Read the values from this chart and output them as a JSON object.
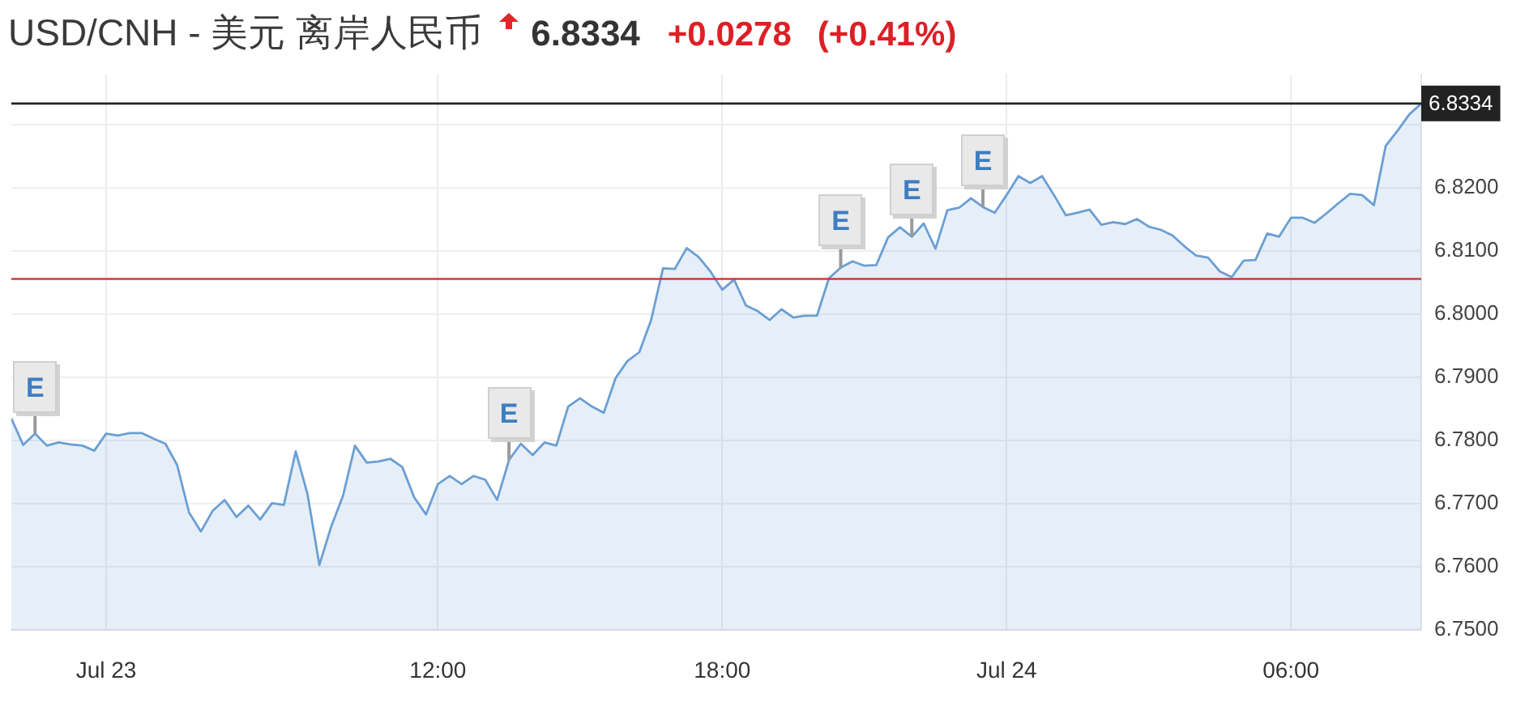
{
  "chart_data": {
    "type": "area",
    "title": "USD/CNH - 美元 离岸人民币",
    "annotations": [
      "6.8334",
      "+0.0278",
      "(+0.41%)",
      {
        "text": "E",
        "x": "--07-23T03:30",
        "y": 6.7811
      },
      {
        "text": "E",
        "x": "--07-23T13:30",
        "y": 6.7769
      },
      {
        "text": "E",
        "x": "--07-23T20:30",
        "y": 6.8074
      },
      {
        "text": "E",
        "x": "--07-23T22:00",
        "y": 6.8123
      },
      {
        "text": "E",
        "x": "--07-23T23:30",
        "y": 6.817
      }
    ],
    "x": [
      "--07-23T03:00",
      "--07-23T03:15",
      "--07-23T03:30",
      "--07-23T03:45",
      "--07-23T04:00",
      "--07-23T04:15",
      "--07-23T04:30",
      "--07-23T04:45",
      "--07-23T05:00",
      "--07-23T05:15",
      "--07-23T05:30",
      "--07-23T05:45",
      "--07-23T06:00",
      "--07-23T06:15",
      "--07-23T06:30",
      "--07-23T06:45",
      "--07-23T07:00",
      "--07-23T07:15",
      "--07-23T07:30",
      "--07-23T07:45",
      "--07-23T08:00",
      "--07-23T08:15",
      "--07-23T08:30",
      "--07-23T08:45",
      "--07-23T09:00",
      "--07-23T09:15",
      "--07-23T09:30",
      "--07-23T09:45",
      "--07-23T10:00",
      "--07-23T10:15",
      "--07-23T10:30",
      "--07-23T10:45",
      "--07-23T11:00",
      "--07-23T11:15",
      "--07-23T11:30",
      "--07-23T11:45",
      "--07-23T12:00",
      "--07-23T12:15",
      "--07-23T12:30",
      "--07-23T12:45",
      "--07-23T13:00",
      "--07-23T13:15",
      "--07-23T13:30",
      "--07-23T13:45",
      "--07-23T14:00",
      "--07-23T14:15",
      "--07-23T14:30",
      "--07-23T14:45",
      "--07-23T15:00",
      "--07-23T15:15",
      "--07-23T15:30",
      "--07-23T15:45",
      "--07-23T16:00",
      "--07-23T16:15",
      "--07-23T16:30",
      "--07-23T16:45",
      "--07-23T17:00",
      "--07-23T17:15",
      "--07-23T17:30",
      "--07-23T17:45",
      "--07-23T18:00",
      "--07-23T18:15",
      "--07-23T18:30",
      "--07-23T18:45",
      "--07-23T19:00",
      "--07-23T19:15",
      "--07-23T19:30",
      "--07-23T19:45",
      "--07-23T20:00",
      "--07-23T20:15",
      "--07-23T20:30",
      "--07-23T20:45",
      "--07-23T21:00",
      "--07-23T21:15",
      "--07-23T21:30",
      "--07-23T21:45",
      "--07-23T22:00",
      "--07-23T22:15",
      "--07-23T22:30",
      "--07-23T22:45",
      "--07-23T23:00",
      "--07-23T23:15",
      "--07-23T23:30",
      "--07-23T23:45",
      "--07-24T00:00",
      "--07-24T00:15",
      "--07-24T00:30",
      "--07-24T00:45",
      "--07-24T01:00",
      "--07-24T01:15",
      "--07-24T01:30",
      "--07-24T01:45",
      "--07-24T02:00",
      "--07-24T02:15",
      "--07-24T02:30",
      "--07-24T02:45",
      "--07-24T03:00",
      "--07-24T03:15",
      "--07-24T03:30",
      "--07-24T03:45",
      "--07-24T04:00",
      "--07-24T04:15",
      "--07-24T04:30",
      "--07-24T04:45",
      "--07-24T05:00",
      "--07-24T05:15",
      "--07-24T05:30",
      "--07-24T05:45",
      "--07-24T06:00",
      "--07-24T06:15",
      "--07-24T06:30",
      "--07-24T06:45",
      "--07-24T07:00",
      "--07-24T07:15",
      "--07-24T07:30",
      "--07-24T07:45",
      "--07-24T08:00",
      "--07-24T08:15",
      "--07-24T08:30",
      "--07-24T08:45"
    ],
    "values": [
      6.7835,
      6.7793,
      6.7811,
      6.7792,
      6.7797,
      6.7794,
      6.7792,
      6.7784,
      6.7811,
      6.7808,
      6.7812,
      6.7812,
      6.7803,
      6.7795,
      6.7761,
      6.7686,
      6.7656,
      6.7689,
      6.7706,
      6.7679,
      6.7697,
      6.7675,
      6.7701,
      6.7698,
      6.7783,
      6.7715,
      6.7603,
      6.7664,
      6.7713,
      6.7792,
      6.7765,
      6.7767,
      6.7771,
      6.7758,
      6.771,
      6.7683,
      6.7731,
      6.7744,
      6.7731,
      6.7744,
      6.7738,
      6.7706,
      6.7769,
      6.7795,
      6.7777,
      6.7797,
      6.7792,
      6.7854,
      6.7867,
      6.7854,
      6.7844,
      6.7899,
      6.7926,
      6.794,
      6.7991,
      6.8073,
      6.8072,
      6.8105,
      6.8091,
      6.8068,
      6.8039,
      6.8055,
      6.8014,
      6.8005,
      6.7991,
      6.8008,
      6.7995,
      6.7998,
      6.7998,
      6.8057,
      6.8074,
      6.8084,
      6.8077,
      6.8078,
      6.8122,
      6.8138,
      6.8123,
      6.8144,
      6.8104,
      6.8165,
      6.8169,
      6.8184,
      6.817,
      6.8161,
      6.8189,
      6.8219,
      6.8208,
      6.8219,
      6.8189,
      6.8157,
      6.8161,
      6.8166,
      6.8142,
      6.8146,
      6.8143,
      6.8151,
      6.8139,
      6.8134,
      6.8125,
      6.8108,
      6.8093,
      6.809,
      6.8068,
      6.8059,
      6.8085,
      6.8086,
      6.8128,
      6.8123,
      6.8153,
      6.8153,
      6.8145,
      6.816,
      6.8176,
      6.8191,
      6.8189,
      6.8173,
      6.8267,
      6.8291,
      6.8317,
      6.8334
    ],
    "color": "#6b9fd3",
    "xlim": [
      "--07-23T03:00",
      "--07-24T08:45"
    ],
    "xticks": [
      {
        "value": "--07-23T05:00",
        "label": "Jul 23"
      },
      {
        "value": "--07-23T12:00",
        "label": "12:00"
      },
      {
        "value": "--07-23T18:00",
        "label": "18:00"
      },
      {
        "value": "--07-24T00:00",
        "label": "Jul 24"
      },
      {
        "value": "--07-24T06:00",
        "label": "06:00"
      }
    ],
    "ylim": [
      6.75,
      6.838
    ],
    "yticks": [
      {
        "value": 6.75,
        "label": "6.7500"
      },
      {
        "value": 6.76,
        "label": "6.7600"
      },
      {
        "value": 6.77,
        "label": "6.7700"
      },
      {
        "value": 6.78,
        "label": "6.7800"
      },
      {
        "value": 6.79,
        "label": "6.7900"
      },
      {
        "value": 6.8,
        "label": "6.8000"
      },
      {
        "value": 6.81,
        "label": "6.8100"
      },
      {
        "value": 6.82,
        "label": "6.8200"
      },
      {
        "value": 6.83,
        "label": null
      }
    ],
    "grid": true,
    "marker": "none",
    "ref_lines": [
      {
        "axis": "y",
        "value": 6.8334,
        "label": "6.8334",
        "color": "#222222"
      },
      {
        "axis": "y",
        "value": 6.8056,
        "color": "#cc3b3f"
      }
    ]
  }
}
